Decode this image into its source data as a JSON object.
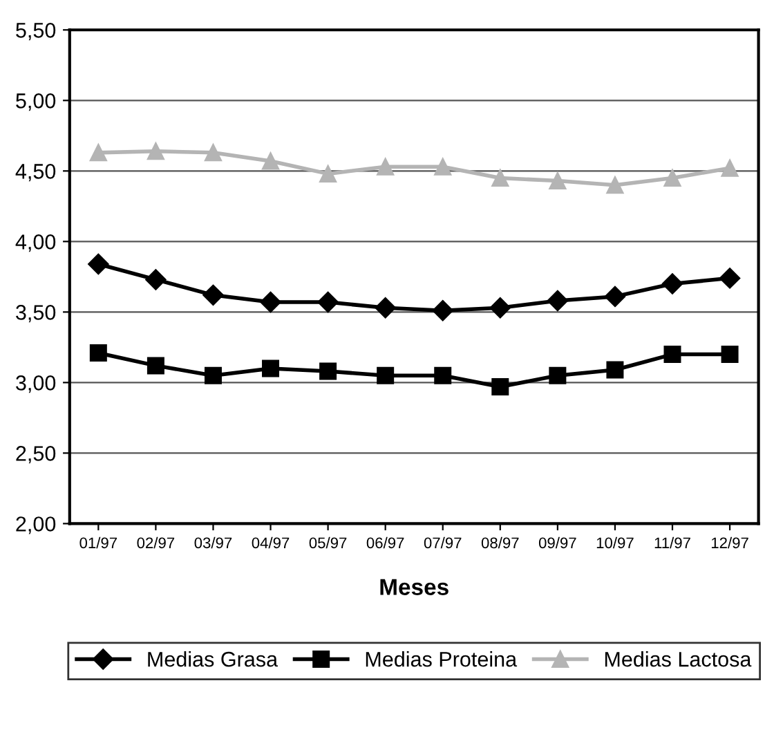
{
  "chart_data": {
    "type": "line",
    "xlabel": "Meses",
    "categories": [
      "01/97",
      "02/97",
      "03/97",
      "04/97",
      "05/97",
      "06/97",
      "07/97",
      "08/97",
      "09/97",
      "10/97",
      "11/97",
      "12/97"
    ],
    "series": [
      {
        "name": "Medias Grasa",
        "color": "#000000",
        "marker": "diamond",
        "values": [
          3.84,
          3.73,
          3.62,
          3.57,
          3.57,
          3.53,
          3.51,
          3.53,
          3.58,
          3.61,
          3.7,
          3.74
        ]
      },
      {
        "name": "Medias Proteina",
        "color": "#000000",
        "marker": "square",
        "values": [
          3.21,
          3.12,
          3.05,
          3.1,
          3.08,
          3.05,
          3.05,
          2.97,
          3.05,
          3.09,
          3.2,
          3.2
        ]
      },
      {
        "name": "Medias Lactosa",
        "color": "#b4b4b4",
        "marker": "triangle",
        "values": [
          4.63,
          4.64,
          4.63,
          4.57,
          4.48,
          4.53,
          4.53,
          4.45,
          4.43,
          4.4,
          4.45,
          4.52
        ]
      }
    ],
    "ylim": [
      2.0,
      5.5
    ],
    "yticks": [
      {
        "value": 2.0,
        "label": "2,00"
      },
      {
        "value": 2.5,
        "label": "2,50"
      },
      {
        "value": 3.0,
        "label": "3,00"
      },
      {
        "value": 3.5,
        "label": "3,50"
      },
      {
        "value": 4.0,
        "label": "4,00"
      },
      {
        "value": 4.5,
        "label": "4,50"
      },
      {
        "value": 5.0,
        "label": "5,00"
      },
      {
        "value": 5.5,
        "label": "5,50"
      }
    ],
    "grid": "y",
    "legend": "bottom",
    "line_style": "solid"
  }
}
